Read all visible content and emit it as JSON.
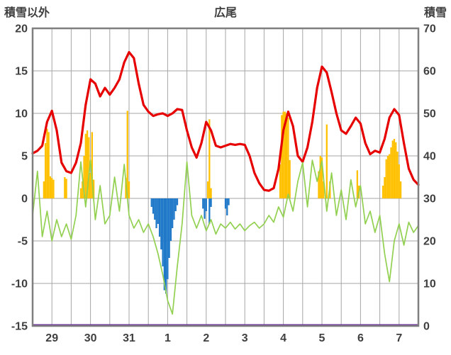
{
  "header": {
    "left_label": "積雪以外",
    "title": "広尾",
    "right_label": "積雪"
  },
  "chart_data": {
    "type": "line",
    "title": "広尾",
    "left_axis": {
      "label": "積雪以外",
      "min": -15,
      "max": 20,
      "ticks": [
        20,
        15,
        10,
        5,
        0,
        -5,
        -10,
        -15
      ]
    },
    "right_axis": {
      "label": "積雪",
      "min": 0,
      "max": 70,
      "ticks": [
        70,
        60,
        50,
        40,
        30,
        20,
        10,
        0
      ]
    },
    "x_axis": {
      "day_labels": [
        "29",
        "30",
        "31",
        "1",
        "2",
        "3",
        "4",
        "5",
        "6",
        "7"
      ],
      "hours_per_day": 24,
      "total_hours": 240,
      "gridline_every_hours": 12
    },
    "colors": {
      "background": "#ffffff",
      "grid": "#a6a6a6",
      "border": "#7f7f7f",
      "text": "#3f3f3f",
      "temperature": "#e60000",
      "green_param": "#92d050",
      "orange_bars": "#ffc000",
      "blue_bars": "#1f78c8",
      "snow_depth": "#7030a0"
    },
    "series": [
      {
        "name": "temperature-line",
        "type": "line",
        "axis": "left",
        "color": "#e60000",
        "width": 3.2,
        "step_hours": 3,
        "values": [
          5.3,
          5.6,
          6.2,
          9.0,
          10.3,
          8.0,
          4.2,
          3.2,
          3.0,
          4.2,
          6.5,
          11.0,
          14.0,
          13.5,
          12.0,
          13.0,
          12.2,
          13.0,
          14.0,
          16.0,
          17.2,
          16.5,
          13.5,
          11.0,
          10.2,
          9.7,
          9.9,
          10.0,
          9.7,
          10.0,
          10.5,
          10.4,
          8.0,
          6.0,
          4.8,
          6.5,
          9.0,
          8.0,
          6.2,
          6.0,
          6.2,
          6.4,
          6.3,
          6.4,
          6.3,
          5.0,
          3.0,
          1.8,
          1.0,
          0.9,
          1.2,
          3.5,
          8.0,
          10.2,
          8.5,
          5.0,
          4.3,
          6.0,
          9.0,
          13.0,
          15.5,
          14.8,
          12.5,
          10.0,
          8.0,
          7.6,
          8.5,
          9.5,
          8.8,
          6.5,
          5.2,
          5.6,
          5.4,
          7.0,
          9.5,
          10.5,
          9.8,
          6.5,
          3.5,
          2.2,
          1.6
        ]
      },
      {
        "name": "green-param-line",
        "type": "line",
        "axis": "left",
        "color": "#92d050",
        "width": 1.7,
        "step_hours": 3,
        "values": [
          -2.0,
          3.2,
          -4.5,
          -1.5,
          -5.0,
          -2.5,
          -4.5,
          -3.0,
          -4.8,
          -2.0,
          4.3,
          -1.0,
          4.5,
          -2.5,
          1.5,
          -3.0,
          -2.0,
          2.5,
          -1.5,
          4.0,
          -2.0,
          -3.5,
          -2.5,
          -4.0,
          -3.0,
          -4.5,
          -6.5,
          -9.0,
          -12.0,
          -13.6,
          -8.0,
          -3.0,
          4.3,
          -2.0,
          -3.5,
          -2.0,
          -3.8,
          -2.5,
          -4.2,
          -3.0,
          -3.5,
          -2.8,
          -3.6,
          -3.0,
          -3.8,
          -3.2,
          -2.8,
          -3.5,
          -3.0,
          -2.0,
          -2.8,
          -1.0,
          -2.2,
          0.5,
          -1.5,
          2.0,
          4.2,
          -1.0,
          4.5,
          2.0,
          4.4,
          -1.5,
          3.0,
          -2.0,
          1.0,
          -2.5,
          2.2,
          -1.0,
          1.5,
          -3.0,
          -1.5,
          -4.0,
          -2.0,
          -6.5,
          -9.8,
          -5.0,
          -3.0,
          -5.5,
          -2.8,
          -4.0,
          -3.2
        ]
      },
      {
        "name": "orange-bars",
        "type": "bar",
        "axis": "left",
        "color": "#ffc000",
        "points": [
          [
            7,
            2.0
          ],
          [
            8,
            6.5
          ],
          [
            9,
            8.2
          ],
          [
            10,
            7.8
          ],
          [
            11,
            2.6
          ],
          [
            12,
            2.4
          ],
          [
            13,
            2.2
          ],
          [
            20,
            2.5
          ],
          [
            21,
            2.3
          ],
          [
            30,
            1.2
          ],
          [
            31,
            2.0
          ],
          [
            32,
            5.0
          ],
          [
            33,
            7.6
          ],
          [
            34,
            8.0
          ],
          [
            35,
            7.2
          ],
          [
            36,
            3.0
          ],
          [
            37,
            7.8
          ],
          [
            38,
            2.2
          ],
          [
            58,
            2.4
          ],
          [
            59,
            10.3
          ],
          [
            60,
            2.0
          ],
          [
            109,
            2.0
          ],
          [
            110,
            9.3
          ],
          [
            111,
            1.2
          ],
          [
            154,
            4.0
          ],
          [
            155,
            9.8
          ],
          [
            156,
            10.2
          ],
          [
            157,
            10.2
          ],
          [
            158,
            10.0
          ],
          [
            159,
            9.5
          ],
          [
            160,
            4.5
          ],
          [
            178,
            3.2
          ],
          [
            179,
            5.0
          ],
          [
            180,
            4.8
          ],
          [
            181,
            2.0
          ],
          [
            183,
            8.7
          ],
          [
            185,
            2.0
          ],
          [
            202,
            3.3
          ],
          [
            203,
            1.5
          ],
          [
            218,
            1.5
          ],
          [
            219,
            2.5
          ],
          [
            220,
            4.6
          ],
          [
            221,
            5.0
          ],
          [
            222,
            5.2
          ],
          [
            223,
            6.0
          ],
          [
            224,
            6.8
          ],
          [
            225,
            7.0
          ],
          [
            226,
            6.6
          ],
          [
            227,
            5.5
          ],
          [
            228,
            4.0
          ],
          [
            229,
            2.0
          ]
        ]
      },
      {
        "name": "blue-bars",
        "type": "bar",
        "axis": "left",
        "color": "#1f78c8",
        "points": [
          [
            74,
            -1.0
          ],
          [
            75,
            -1.8
          ],
          [
            76,
            -2.5
          ],
          [
            77,
            -3.5
          ],
          [
            78,
            -3.0
          ],
          [
            79,
            -4.5
          ],
          [
            80,
            -6.0
          ],
          [
            81,
            -8.0
          ],
          [
            82,
            -10.8
          ],
          [
            83,
            -11.2
          ],
          [
            84,
            -9.5
          ],
          [
            85,
            -7.0
          ],
          [
            86,
            -5.0
          ],
          [
            87,
            -3.5
          ],
          [
            88,
            -2.5
          ],
          [
            89,
            -1.5
          ],
          [
            90,
            -0.8
          ],
          [
            106,
            -1.2
          ],
          [
            107,
            -2.4
          ],
          [
            108,
            -1.5
          ],
          [
            110,
            -3.0
          ],
          [
            111,
            -1.0
          ],
          [
            120,
            -1.2
          ],
          [
            121,
            -2.0
          ],
          [
            122,
            -0.8
          ]
        ]
      },
      {
        "name": "snow-depth-line",
        "type": "constant",
        "axis": "right",
        "color": "#7030a0",
        "width": 2.5,
        "value": 0
      }
    ]
  }
}
